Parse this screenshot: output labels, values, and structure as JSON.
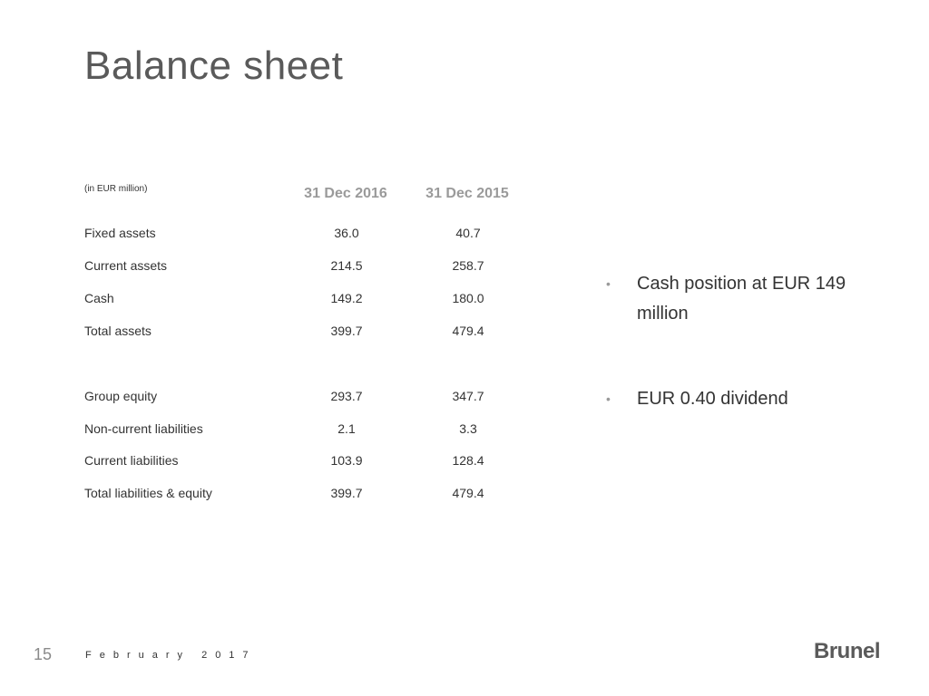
{
  "slide": {
    "title": "Balance sheet",
    "page_number": "15",
    "footer_date": "February 2017",
    "logo_text": "Brunel"
  },
  "table": {
    "unit_note": "(in EUR million)",
    "columns": [
      "31 Dec 2016",
      "31 Dec 2015"
    ],
    "rows": [
      {
        "label": "Fixed assets",
        "v2016": "36.0",
        "v2015": "40.7"
      },
      {
        "label": "Current assets",
        "v2016": "214.5",
        "v2015": "258.7"
      },
      {
        "label": "Cash",
        "v2016": "149.2",
        "v2015": "180.0"
      },
      {
        "label": "Total assets",
        "v2016": "399.7",
        "v2015": "479.4"
      },
      {
        "label": "Group equity",
        "v2016": "293.7",
        "v2015": "347.7"
      },
      {
        "label": "Non-current liabilities",
        "v2016": "2.1",
        "v2015": "3.3"
      },
      {
        "label": "Current liabilities",
        "v2016": "103.9",
        "v2015": "128.4"
      },
      {
        "label": "Total liabilities & equity",
        "v2016": "399.7",
        "v2015": "479.4"
      }
    ]
  },
  "bullets": [
    "Cash position at EUR 149 million",
    "EUR 0.40 dividend"
  ],
  "colors": {
    "title": "#5a5a5a",
    "header": "#9a9a9a",
    "body": "#333333"
  }
}
